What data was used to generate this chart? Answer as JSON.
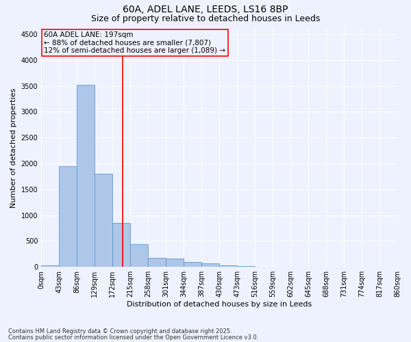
{
  "title1": "60A, ADEL LANE, LEEDS, LS16 8BP",
  "title2": "Size of property relative to detached houses in Leeds",
  "xlabel": "Distribution of detached houses by size in Leeds",
  "ylabel": "Number of detached properties",
  "bar_values": [
    30,
    1950,
    3520,
    1800,
    850,
    440,
    170,
    165,
    90,
    65,
    35,
    20,
    0,
    0,
    0,
    0,
    0,
    0,
    0,
    0
  ],
  "bin_edges": [
    0,
    43,
    86,
    129,
    172,
    215,
    258,
    301,
    344,
    387,
    430,
    473,
    516,
    559,
    602,
    645,
    688,
    731,
    774,
    817,
    860
  ],
  "bin_labels": [
    "0sqm",
    "43sqm",
    "86sqm",
    "129sqm",
    "172sqm",
    "215sqm",
    "258sqm",
    "301sqm",
    "344sqm",
    "387sqm",
    "430sqm",
    "473sqm",
    "516sqm",
    "559sqm",
    "602sqm",
    "645sqm",
    "688sqm",
    "731sqm",
    "774sqm",
    "817sqm",
    "860sqm"
  ],
  "bar_color": "#aec6e8",
  "bar_edge_color": "#5b9bd5",
  "vline_x": 197,
  "vline_color": "red",
  "annotation_text": "60A ADEL LANE: 197sqm\n← 88% of detached houses are smaller (7,807)\n12% of semi-detached houses are larger (1,089) →",
  "annotation_box_color": "red",
  "ylim": [
    0,
    4600
  ],
  "yticks": [
    0,
    500,
    1000,
    1500,
    2000,
    2500,
    3000,
    3500,
    4000,
    4500
  ],
  "footnote1": "Contains HM Land Registry data © Crown copyright and database right 2025.",
  "footnote2": "Contains public sector information licensed under the Open Government Licence v3.0.",
  "bg_color": "#eef2ff",
  "grid_color": "#ffffff",
  "title_fontsize": 10,
  "subtitle_fontsize": 9,
  "axis_label_fontsize": 8,
  "tick_fontsize": 7,
  "annotation_fontsize": 7.5
}
